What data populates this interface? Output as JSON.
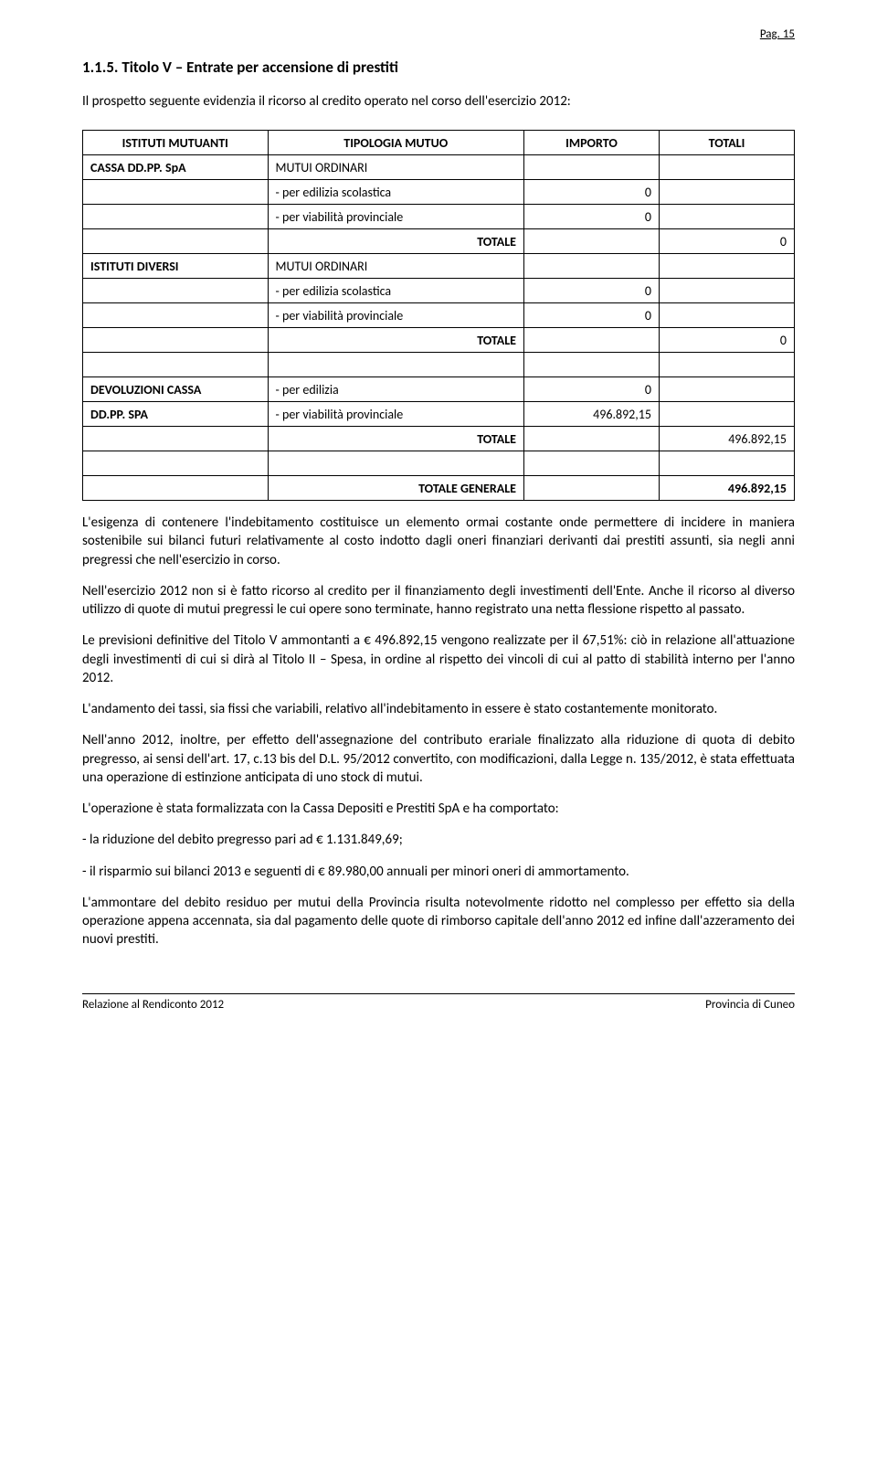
{
  "page_number_label": "Pag. 15",
  "section_title": "1.1.5.   Titolo V – Entrate per accensione di prestiti",
  "intro_text": "Il prospetto seguente evidenzia il ricorso al credito operato nel corso dell'esercizio 2012:",
  "table": {
    "headers": [
      "ISTITUTI MUTUANTI",
      "TIPOLOGIA MUTUO",
      "IMPORTO",
      "TOTALI"
    ],
    "col_widths": [
      "26%",
      "36%",
      "19%",
      "19%"
    ],
    "rows": [
      {
        "c": [
          "CASSA DD.PP. SpA",
          "MUTUI ORDINARI",
          "",
          ""
        ],
        "bold0": true
      },
      {
        "c": [
          "",
          "- per edilizia scolastica",
          "0",
          ""
        ]
      },
      {
        "c": [
          "",
          "- per viabilità provinciale",
          "0",
          ""
        ]
      },
      {
        "c": [
          "",
          "TOTALE",
          "",
          "0"
        ],
        "bold1": true,
        "align1": "right"
      },
      {
        "c": [
          "ISTITUTI DIVERSI",
          "MUTUI ORDINARI",
          "",
          ""
        ],
        "bold0": true
      },
      {
        "c": [
          "",
          "- per edilizia scolastica",
          "0",
          ""
        ]
      },
      {
        "c": [
          "",
          "- per viabilità provinciale",
          "0",
          ""
        ]
      },
      {
        "c": [
          "",
          "TOTALE",
          "",
          "0"
        ],
        "bold1": true,
        "align1": "right"
      },
      {
        "spacer": true
      },
      {
        "c": [
          "DEVOLUZIONI CASSA",
          "- per edilizia",
          "0",
          ""
        ],
        "bold0": true
      },
      {
        "c": [
          "DD.PP. SPA",
          "- per viabilità provinciale",
          "496.892,15",
          ""
        ],
        "bold0": true
      },
      {
        "c": [
          "",
          "TOTALE",
          "",
          "496.892,15"
        ],
        "bold1": true,
        "align1": "right"
      },
      {
        "spacer": true
      },
      {
        "c": [
          "",
          "TOTALE GENERALE",
          "",
          "496.892,15"
        ],
        "bold1": true,
        "align1": "right",
        "bold3": true
      }
    ]
  },
  "paragraphs": [
    "L'esigenza di contenere l'indebitamento costituisce un elemento ormai costante onde permettere di incidere in maniera sostenibile sui bilanci futuri relativamente al costo indotto dagli oneri finanziari derivanti dai prestiti assunti, sia negli anni pregressi che nell'esercizio in corso.",
    "Nell'esercizio 2012 non si è fatto ricorso al credito per il finanziamento degli investimenti dell'Ente. Anche il ricorso al diverso utilizzo di quote di mutui pregressi le cui opere sono terminate, hanno registrato una netta flessione rispetto al passato.",
    "Le previsioni definitive del Titolo V ammontanti a € 496.892,15 vengono realizzate per il 67,51%: ciò in relazione all'attuazione degli investimenti di cui si dirà al Titolo II – Spesa, in ordine al rispetto dei vincoli di cui al patto di stabilità interno per l'anno 2012.",
    "L'andamento dei tassi, sia fissi che variabili, relativo all'indebitamento in essere è stato costantemente monitorato.",
    "Nell'anno 2012, inoltre, per effetto dell'assegnazione del contributo erariale finalizzato alla riduzione di quota di debito pregresso, ai sensi dell'art. 17, c.13 bis del D.L. 95/2012 convertito, con modificazioni, dalla Legge n. 135/2012, è stata effettuata una operazione di estinzione anticipata di uno stock di mutui.",
    "L'operazione è stata formalizzata con la Cassa Depositi e Prestiti SpA e ha comportato:",
    "- la riduzione del debito pregresso pari ad € 1.131.849,69;",
    "- il risparmio sui bilanci 2013 e seguenti di € 89.980,00 annuali per minori oneri di ammortamento.",
    "L'ammontare del debito residuo per mutui della Provincia risulta notevolmente ridotto nel complesso per effetto sia della operazione appena accennata, sia dal pagamento delle quote di rimborso capitale dell'anno 2012 ed infine dall'azzeramento dei nuovi prestiti."
  ],
  "footer": {
    "left": "Relazione al Rendiconto 2012",
    "right": "Provincia di Cuneo"
  },
  "colors": {
    "text": "#000000",
    "background": "#ffffff",
    "border": "#000000"
  },
  "typography": {
    "body_fontsize_pt": 11,
    "title_fontsize_pt": 12,
    "font_family": "Calibri"
  }
}
